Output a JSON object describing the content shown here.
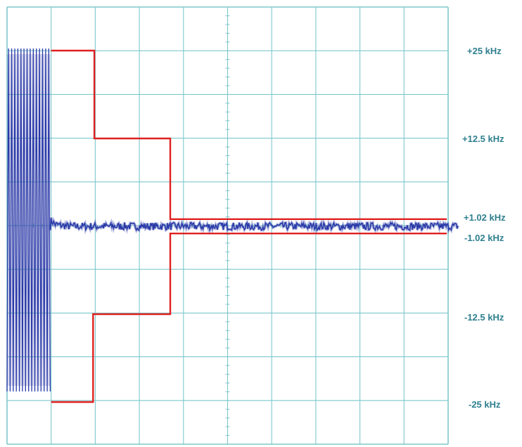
{
  "chart_data": {
    "type": "line",
    "title": "",
    "xlabel": "",
    "ylabel": "",
    "xlim": [
      0,
      10
    ],
    "ylim": [
      -25,
      25
    ],
    "grid": true,
    "y_tick_labels": [
      "+25 kHz",
      "+12.5 kHz",
      "+1.02 kHz",
      "-1.02 kHz",
      "-12.5 kHz",
      "-25 kHz"
    ],
    "series": [
      {
        "role": "frequency trace",
        "color": "#2a3aa8",
        "x": [
          0.0,
          0.98,
          1.0,
          1.1,
          1.4,
          10.0
        ],
        "y": [
          0,
          0,
          0.8,
          0.25,
          0.0,
          0.0
        ],
        "burst_x_range": [
          0.0,
          0.98
        ],
        "burst_y_range": [
          -23.5,
          25.3
        ]
      },
      {
        "role": "upper limit mask",
        "color": "#e02020",
        "x": [
          1.0,
          1.98,
          1.98,
          3.7,
          3.7,
          9.97
        ],
        "y": [
          25.0,
          25.0,
          12.5,
          12.5,
          1.02,
          1.02
        ]
      },
      {
        "role": "lower limit mask",
        "color": "#e02020",
        "x": [
          1.0,
          1.95,
          1.95,
          3.7,
          3.7,
          9.97
        ],
        "y": [
          -25.0,
          -25.0,
          -12.5,
          -12.5,
          -1.02,
          -1.02
        ]
      }
    ]
  },
  "colors": {
    "grid": "#7ec8cc",
    "frame": "#5aa8b0",
    "trace": "#2a3aa8",
    "mask": "#e02020",
    "label": "#2f7f8f"
  }
}
